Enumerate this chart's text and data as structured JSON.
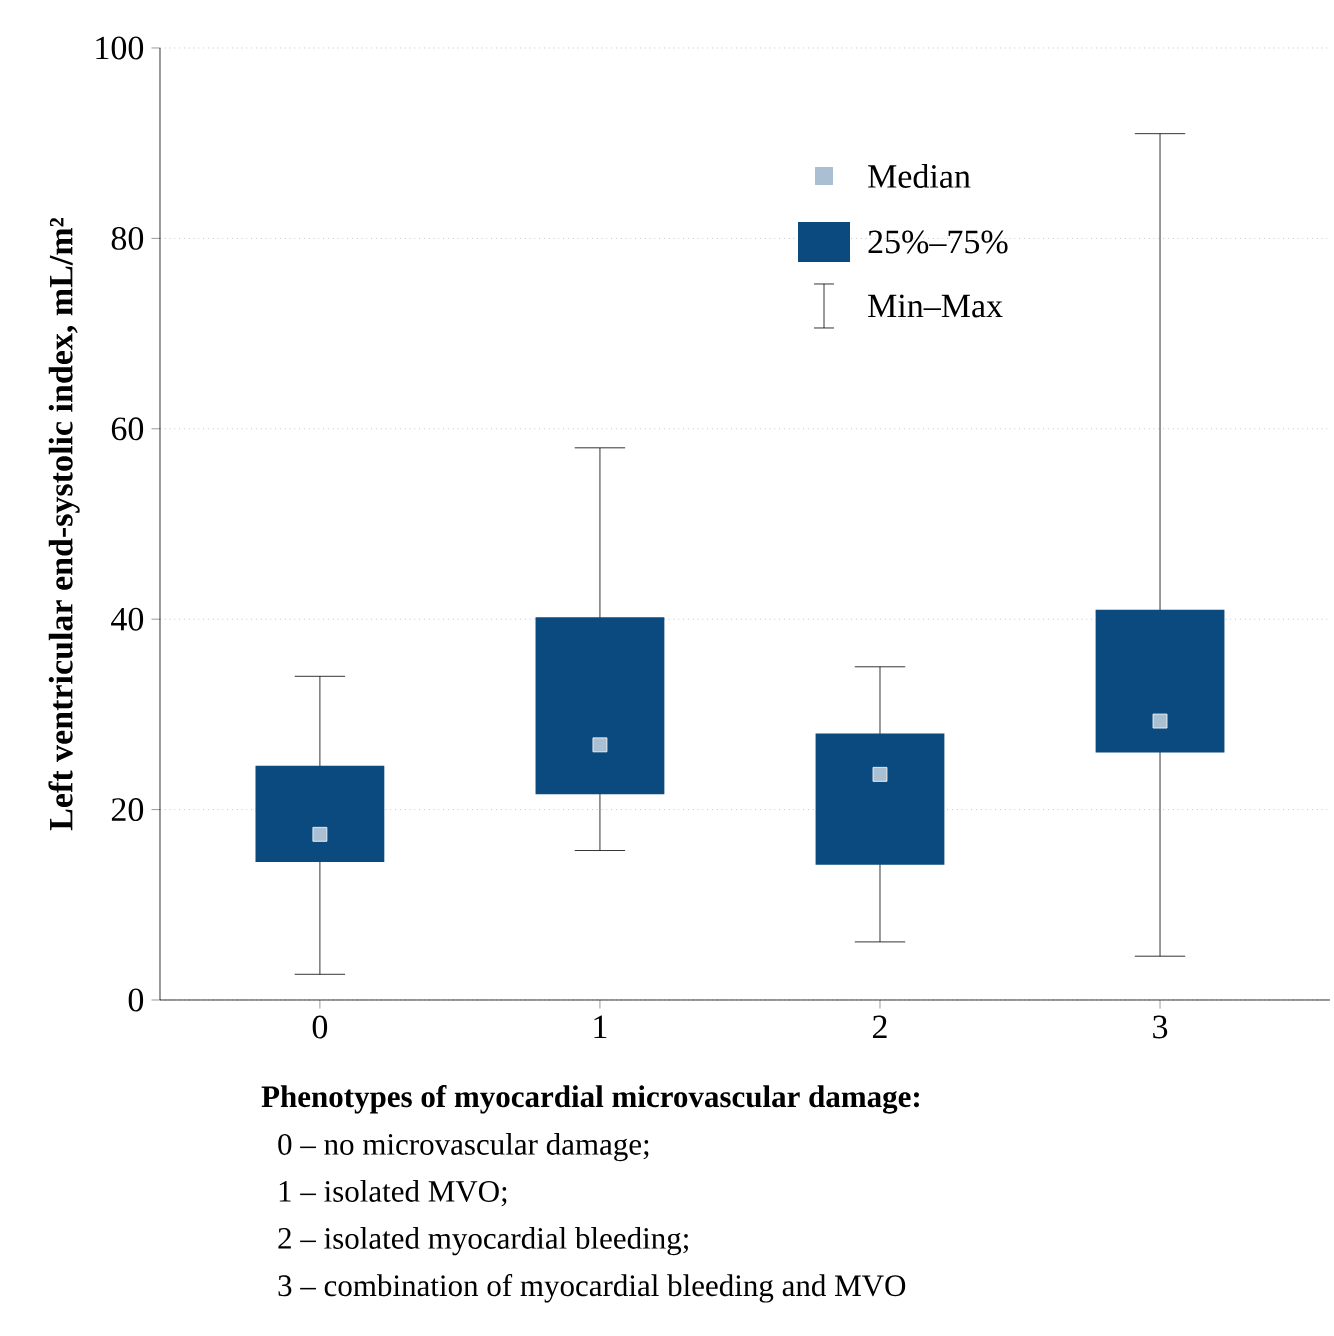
{
  "chart_data": {
    "type": "box",
    "ylabel": "Left ventricular end-systolic index, mL/m²",
    "xlabel": "Phenotypes of myocardial microvascular damage:",
    "categories": [
      "0",
      "1",
      "2",
      "3"
    ],
    "series": [
      {
        "color": "#0b4a7e",
        "boxes": [
          {
            "low": 2.7,
            "q1": 14.5,
            "median": 17.4,
            "q3": 24.6,
            "high": 34
          },
          {
            "low": 15.7,
            "q1": 21.6,
            "median": 26.8,
            "q3": 40.2,
            "high": 58
          },
          {
            "low": 6.1,
            "q1": 14.2,
            "median": 23.7,
            "q3": 28,
            "high": 35
          },
          {
            "low": 4.6,
            "q1": 26,
            "median": 29.3,
            "q3": 41,
            "high": 91
          }
        ]
      }
    ],
    "ylim": [
      0,
      100
    ],
    "yticks": [
      0,
      20,
      40,
      60,
      80,
      100
    ],
    "grid": "y",
    "annotations": [
      "Median",
      "25%–75%",
      "Min–Max",
      "0 – no microvascular damage;",
      "1 – isolated MVO;",
      "2 – isolated myocardial bleeding;",
      "3 – combination of myocardial bleeding and MVO"
    ]
  }
}
